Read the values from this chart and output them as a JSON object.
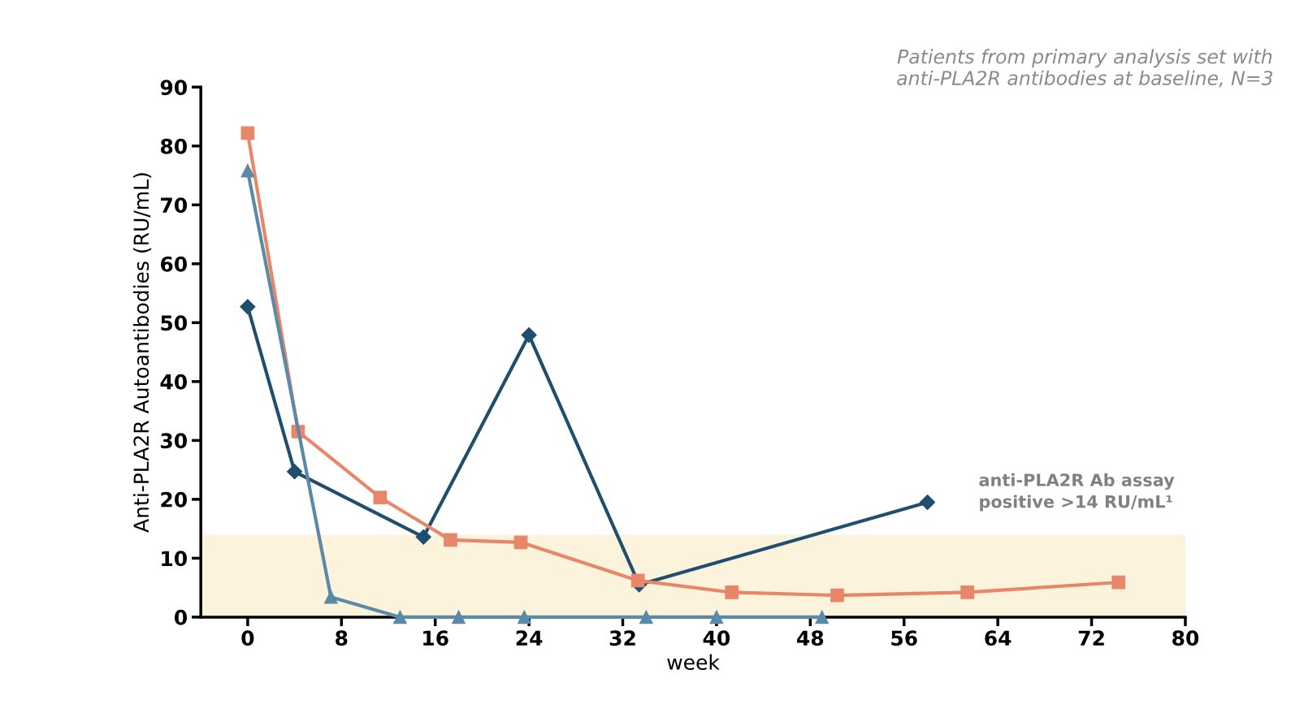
{
  "chart_data": {
    "type": "line",
    "xlabel": "week",
    "ylabel": "Anti-PLA2R Autoantibodies (RU/mL)",
    "annotations": [
      "Patients from primary analysis set with anti-PLA2R antibodies at baseline, N=3"
    ],
    "series": [
      {
        "color": "#1f4e6e",
        "marker": "diamond",
        "x": [
          0,
          4,
          15,
          24,
          33.4,
          58
        ],
        "values": [
          52.7,
          24.7,
          13.6,
          47.9,
          5.5,
          19.5
        ]
      },
      {
        "color": "#e8866a",
        "marker": "square",
        "x": [
          0,
          4.3,
          11.3,
          17.3,
          23.3,
          33.3,
          41.3,
          50.3,
          61.4,
          74.3
        ],
        "values": [
          82.2,
          31.5,
          20.3,
          13.1,
          12.7,
          6.2,
          4.2,
          3.7,
          4.2,
          5.9
        ]
      },
      {
        "color": "#5b8aa8",
        "marker": "triangle",
        "x": [
          0,
          7.1,
          13,
          18,
          23.6,
          34,
          40,
          49
        ],
        "values": [
          75.8,
          3.4,
          0,
          0,
          0,
          0,
          0,
          0
        ]
      }
    ],
    "bands": [
      {
        "axis": "y",
        "from": 0,
        "to": 14,
        "label": "anti-PLA2R Ab assay positive >14 RU/mL¹",
        "color": "#fbf3dc"
      }
    ],
    "xlim": [
      -4,
      80
    ],
    "xticks": [
      0,
      8,
      16,
      24,
      32,
      40,
      48,
      56,
      64,
      72,
      80
    ],
    "ylim": [
      0,
      90
    ],
    "yticks": [
      0,
      10,
      20,
      30,
      40,
      50,
      60,
      70,
      80,
      90
    ],
    "grid": false,
    "legend": false
  }
}
